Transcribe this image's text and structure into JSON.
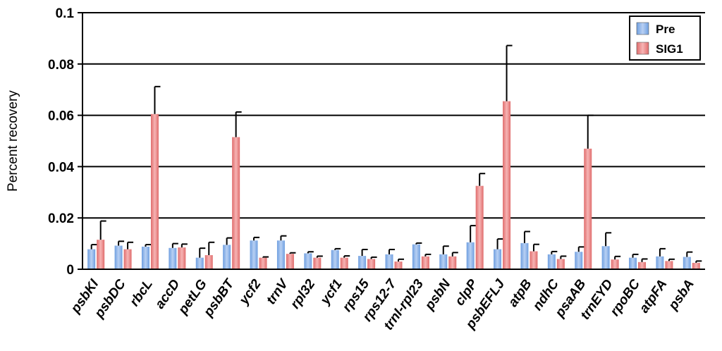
{
  "chart_data": {
    "type": "bar",
    "title": "",
    "xlabel": "",
    "ylabel": "Percent recovery",
    "ylim": [
      0,
      0.1
    ],
    "yticks": [
      0,
      0.02,
      0.04,
      0.06,
      0.08,
      0.1
    ],
    "ytick_labels": [
      "0",
      "0.02",
      "0.04",
      "0.06",
      "0.08",
      "0.1"
    ],
    "grid": "horizontal",
    "legend_position": "top-right",
    "categories": [
      "psbKI",
      "psbDC",
      "rbcL",
      "accD",
      "petLG",
      "psbBT",
      "ycf2",
      "trnV",
      "rpl32",
      "ycf1",
      "rps15",
      "rps12-7",
      "trnI-rpl23",
      "psbN",
      "clpP",
      "psbEFLJ",
      "atpB",
      "ndhC",
      "psaAB",
      "trnEYD",
      "rpoBC",
      "atpFA",
      "psbA"
    ],
    "series": [
      {
        "name": "Pre",
        "color": "#6f9fe0",
        "values": [
          0.0078,
          0.0092,
          0.0088,
          0.0083,
          0.0045,
          0.0095,
          0.0112,
          0.0112,
          0.0062,
          0.0075,
          0.0052,
          0.0058,
          0.0097,
          0.0058,
          0.0105,
          0.0078,
          0.0102,
          0.0058,
          0.0068,
          0.009,
          0.0045,
          0.005,
          0.0048
        ],
        "errors": [
          0.0018,
          0.0017,
          0.0008,
          0.0017,
          0.0037,
          0.0027,
          0.0012,
          0.0018,
          0.0006,
          0.0005,
          0.0025,
          0.0019,
          0.0005,
          0.0032,
          0.0065,
          0.004,
          0.0045,
          0.0011,
          0.0019,
          0.0052,
          0.0013,
          0.003,
          0.0019
        ]
      },
      {
        "name": "SIG1",
        "color": "#e06c6c",
        "values": [
          0.0115,
          0.0078,
          0.0605,
          0.0085,
          0.0055,
          0.0515,
          0.0045,
          0.006,
          0.0045,
          0.0045,
          0.004,
          0.003,
          0.005,
          0.005,
          0.0325,
          0.0655,
          0.007,
          0.004,
          0.047,
          0.0038,
          0.0028,
          0.0032,
          0.0025
        ],
        "errors": [
          0.0073,
          0.0027,
          0.0107,
          0.0013,
          0.005,
          0.0098,
          0.0003,
          0.0004,
          0.0006,
          0.0007,
          0.0007,
          0.0009,
          0.0008,
          0.0015,
          0.0048,
          0.0217,
          0.0027,
          0.0011,
          0.013,
          0.0012,
          0.0012,
          0.0007,
          0.0007
        ]
      }
    ]
  }
}
